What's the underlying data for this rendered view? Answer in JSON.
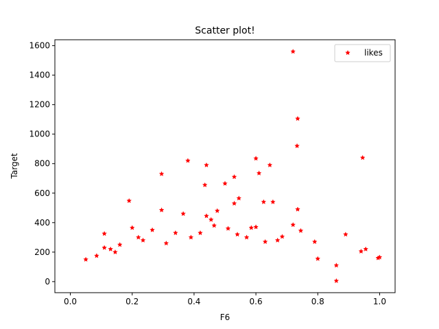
{
  "chart_data": {
    "type": "scatter",
    "title": "Scatter plot!",
    "xlabel": "F6",
    "ylabel": "Target",
    "xlim": [
      -0.05,
      1.05
    ],
    "ylim": [
      -75,
      1640
    ],
    "x_ticks": [
      "0.0",
      "0.2",
      "0.4",
      "0.6",
      "0.8",
      "1.0"
    ],
    "y_ticks": [
      "0",
      "200",
      "400",
      "600",
      "800",
      "1000",
      "1200",
      "1400",
      "1600"
    ],
    "x_tick_values": [
      0.0,
      0.2,
      0.4,
      0.6,
      0.8,
      1.0
    ],
    "y_tick_values": [
      0,
      200,
      400,
      600,
      800,
      1000,
      1200,
      1400,
      1600
    ],
    "grid": false,
    "legend": {
      "position": "top-right",
      "entries": [
        "likes"
      ]
    },
    "marker_color": "#ff0000",
    "series": [
      {
        "name": "likes",
        "color": "#ff0000",
        "points": [
          [
            0.72,
            1560
          ],
          [
            0.735,
            1105
          ],
          [
            0.733,
            920
          ],
          [
            0.38,
            820
          ],
          [
            0.44,
            790
          ],
          [
            0.6,
            835
          ],
          [
            0.945,
            840
          ],
          [
            0.295,
            730
          ],
          [
            0.53,
            710
          ],
          [
            0.5,
            665
          ],
          [
            0.61,
            735
          ],
          [
            0.645,
            790
          ],
          [
            0.435,
            655
          ],
          [
            0.545,
            565
          ],
          [
            0.53,
            530
          ],
          [
            0.625,
            540
          ],
          [
            0.655,
            540
          ],
          [
            0.19,
            548
          ],
          [
            0.735,
            490
          ],
          [
            0.295,
            485
          ],
          [
            0.365,
            460
          ],
          [
            0.475,
            480
          ],
          [
            0.44,
            445
          ],
          [
            0.72,
            385
          ],
          [
            0.745,
            345
          ],
          [
            0.89,
            320
          ],
          [
            0.79,
            270
          ],
          [
            0.955,
            220
          ],
          [
            0.94,
            205
          ],
          [
            0.22,
            300
          ],
          [
            0.11,
            325
          ],
          [
            0.2,
            365
          ],
          [
            0.265,
            350
          ],
          [
            0.235,
            280
          ],
          [
            0.455,
            420
          ],
          [
            0.465,
            380
          ],
          [
            0.51,
            360
          ],
          [
            0.585,
            365
          ],
          [
            0.6,
            370
          ],
          [
            0.685,
            305
          ],
          [
            0.67,
            280
          ],
          [
            0.63,
            270
          ],
          [
            0.54,
            320
          ],
          [
            0.57,
            300
          ],
          [
            0.39,
            300
          ],
          [
            0.42,
            330
          ],
          [
            0.34,
            330
          ],
          [
            0.31,
            260
          ],
          [
            0.16,
            250
          ],
          [
            0.13,
            220
          ],
          [
            0.085,
            175
          ],
          [
            0.05,
            150
          ],
          [
            0.11,
            230
          ],
          [
            0.145,
            200
          ],
          [
            1.0,
            165
          ],
          [
            0.995,
            160
          ],
          [
            0.8,
            155
          ],
          [
            0.86,
            110
          ],
          [
            0.86,
            5
          ]
        ]
      }
    ]
  }
}
